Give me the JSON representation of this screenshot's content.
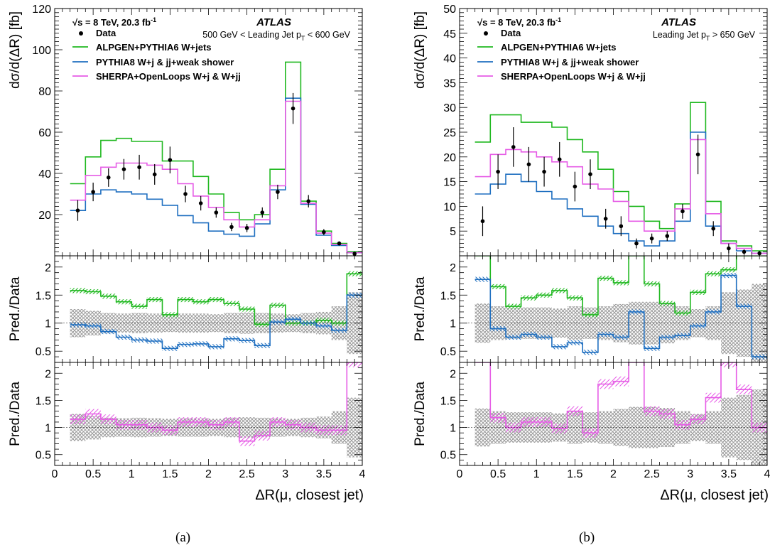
{
  "captions": [
    "(a)",
    "(b)"
  ],
  "colors": {
    "data": "#000000",
    "alpgen": "#1fb81f",
    "pythia": "#1f6fc0",
    "sherpa": "#e65ce6",
    "band": "#9a9a9a"
  },
  "chart_data": [
    {
      "type": "line",
      "panel": "a",
      "experiment": "ATLAS",
      "energy_label": "√s = 8 TeV, 20.3 fb",
      "energy_sup": "-1",
      "selection": {
        "pre": "500 GeV < Leading Jet p",
        "sub": "T",
        "post": " < 600 GeV"
      },
      "ylabel": "dσ/d(ΔR) [fb]",
      "ratio_ylabel": "Pred./Data",
      "xlabel": "ΔR(μ, closest jet)",
      "xlim": [
        0,
        4
      ],
      "xticks": [
        "0",
        "0.5",
        "1",
        "1.5",
        "2",
        "2.5",
        "3",
        "3.5",
        "4"
      ],
      "ylim": [
        0,
        120
      ],
      "yticks": [
        "20",
        "40",
        "60",
        "80",
        "100",
        "120"
      ],
      "ratio_ylim": [
        0.3,
        2.2
      ],
      "ratio_yticks": [
        "0.5",
        "1",
        "1.5",
        "2"
      ],
      "legend": [
        "Data",
        "ALPGEN+PYTHIA6 W+jets",
        "PYTHIA8 W+j & jj+weak shower",
        "SHERPA+OpenLoops W+j & W+jj"
      ],
      "bin_edges": [
        0.2,
        0.4,
        0.6,
        0.8,
        1.0,
        1.2,
        1.4,
        1.6,
        1.8,
        2.0,
        2.2,
        2.4,
        2.6,
        2.8,
        3.0,
        3.2,
        3.4,
        3.6,
        3.8,
        4.0
      ],
      "data": {
        "x": [
          0.3,
          0.5,
          0.7,
          0.9,
          1.1,
          1.3,
          1.5,
          1.7,
          1.9,
          2.1,
          2.3,
          2.5,
          2.7,
          2.9,
          3.1,
          3.3,
          3.5,
          3.7,
          3.9
        ],
        "y": [
          22,
          31,
          38,
          42,
          43,
          39.5,
          46.5,
          30,
          25.5,
          21,
          14,
          13.5,
          21,
          31,
          71.5,
          26.5,
          11.5,
          6,
          1
        ],
        "err": [
          5,
          4.5,
          4.5,
          5,
          6,
          5,
          6.5,
          4,
          3.5,
          2.5,
          2,
          2,
          2.5,
          3.5,
          7.5,
          3,
          1.5,
          1,
          0.5
        ]
      },
      "series": [
        {
          "name": "ALPGEN+PYTHIA6 W+jets",
          "values": [
            35,
            48,
            56,
            57,
            55.5,
            55.5,
            46,
            46,
            38.5,
            30,
            21,
            17.5,
            20,
            42,
            94,
            26.5,
            12,
            6,
            2
          ]
        },
        {
          "name": "PYTHIA8 W+j & jj+weak shower",
          "values": [
            22,
            30,
            32,
            31,
            30,
            27.5,
            24.5,
            19.5,
            16,
            12,
            10.5,
            9.5,
            15.5,
            32,
            76.5,
            25,
            10,
            5,
            1.5
          ]
        },
        {
          "name": "SHERPA+OpenLoops W+j & W+jj",
          "values": [
            27,
            39,
            43,
            45,
            45,
            44,
            42,
            35,
            29,
            23.5,
            17.5,
            14,
            17.5,
            34,
            75,
            25.5,
            11,
            5.5,
            1.5
          ]
        }
      ],
      "ratio_top": {
        "alpgen": [
          1.58,
          1.56,
          1.48,
          1.38,
          1.3,
          1.42,
          1.15,
          1.42,
          1.38,
          1.42,
          1.35,
          1.25,
          0.98,
          1.32,
          1.0,
          1.0,
          1.05,
          1.0,
          1.88
        ],
        "pythia": [
          0.97,
          0.95,
          0.85,
          0.75,
          0.7,
          0.68,
          0.55,
          0.62,
          0.63,
          0.58,
          0.72,
          0.69,
          0.6,
          1.02,
          1.07,
          1.0,
          0.95,
          0.87,
          1.5
        ],
        "band": [
          0.25,
          0.22,
          0.18,
          0.17,
          0.18,
          0.17,
          0.16,
          0.17,
          0.17,
          0.16,
          0.18,
          0.19,
          0.18,
          0.17,
          0.16,
          0.18,
          0.2,
          0.3,
          0.55
        ]
      },
      "ratio_bottom": {
        "sherpa": [
          1.15,
          1.25,
          1.15,
          1.05,
          1.05,
          1.0,
          0.95,
          1.1,
          1.1,
          1.05,
          1.1,
          0.75,
          0.85,
          1.1,
          1.05,
          1.0,
          0.95,
          0.95,
          2.2
        ],
        "band": [
          0.25,
          0.22,
          0.18,
          0.17,
          0.18,
          0.17,
          0.16,
          0.17,
          0.17,
          0.16,
          0.18,
          0.19,
          0.18,
          0.17,
          0.16,
          0.18,
          0.2,
          0.3,
          0.55
        ]
      }
    },
    {
      "type": "line",
      "panel": "b",
      "experiment": "ATLAS",
      "energy_label": "√s = 8 TeV, 20.3 fb",
      "energy_sup": "-1",
      "selection": {
        "pre": "Leading Jet p",
        "sub": "T",
        "post": " > 650 GeV"
      },
      "ylabel": "dσ/d(ΔR) [fb]",
      "ratio_ylabel": "Pred./Data",
      "xlabel": "ΔR(μ, closest jet)",
      "xlim": [
        0,
        4
      ],
      "xticks": [
        "0",
        "0.5",
        "1",
        "1.5",
        "2",
        "2.5",
        "3",
        "3.5",
        "4"
      ],
      "ylim": [
        0,
        50
      ],
      "yticks": [
        "5",
        "10",
        "15",
        "20",
        "25",
        "30",
        "35",
        "40",
        "45",
        "50"
      ],
      "ratio_ylim": [
        0.3,
        2.2
      ],
      "ratio_yticks": [
        "0.5",
        "1",
        "1.5",
        "2"
      ],
      "legend": [
        "Data",
        "ALPGEN+PYTHIA6 W+jets",
        "PYTHIA8 W+j & jj+weak shower",
        "SHERPA+OpenLoops W+j & W+jj"
      ],
      "bin_edges": [
        0.2,
        0.4,
        0.6,
        0.8,
        1.0,
        1.2,
        1.4,
        1.6,
        1.8,
        2.0,
        2.2,
        2.4,
        2.6,
        2.8,
        3.0,
        3.2,
        3.4,
        3.6,
        3.8,
        4.0
      ],
      "data": {
        "x": [
          0.3,
          0.5,
          0.7,
          0.9,
          1.1,
          1.3,
          1.5,
          1.7,
          1.9,
          2.1,
          2.3,
          2.5,
          2.7,
          2.9,
          3.1,
          3.3,
          3.5,
          3.7,
          3.9
        ],
        "y": [
          7,
          17,
          22,
          18.5,
          17,
          19.5,
          14,
          16.5,
          7.5,
          6,
          2.5,
          3.5,
          4,
          9,
          20.5,
          5.5,
          1.5,
          0.8,
          0.5
        ],
        "err": [
          3,
          3.5,
          4,
          3.5,
          3,
          3.5,
          3,
          3,
          2,
          2,
          1,
          1,
          1,
          1.5,
          4,
          1.5,
          1,
          0.5,
          0.5
        ]
      },
      "series": [
        {
          "name": "ALPGEN+PYTHIA6 W+jets",
          "values": [
            23,
            28.5,
            28.5,
            27,
            27,
            26,
            23.5,
            21,
            17.5,
            13,
            10,
            7,
            5.5,
            10.5,
            31,
            11,
            3,
            2,
            1
          ]
        },
        {
          "name": "PYTHIA8 W+j & jj+weak shower",
          "values": [
            12.5,
            14.5,
            16.5,
            15,
            13,
            11.5,
            9.5,
            8,
            6,
            4.5,
            3,
            2,
            3,
            7,
            25,
            6,
            2.5,
            1,
            0.5
          ]
        },
        {
          "name": "SHERPA+OpenLoops W+j & W+jj",
          "values": [
            16,
            20.5,
            21.5,
            21,
            20,
            19,
            18,
            14.5,
            13.5,
            11,
            7,
            5,
            5,
            9.5,
            23.5,
            8.5,
            2.5,
            1.5,
            0.5
          ]
        }
      ],
      "ratio_top": {
        "alpgen": [
          2.3,
          1.65,
          1.3,
          1.45,
          1.5,
          1.58,
          1.45,
          1.15,
          1.8,
          1.72,
          3.0,
          1.7,
          1.35,
          1.18,
          1.55,
          1.88,
          1.95,
          2.3,
          2.3
        ],
        "pythia": [
          1.78,
          0.9,
          0.75,
          0.8,
          0.75,
          0.58,
          0.65,
          0.48,
          0.8,
          0.75,
          1.2,
          0.55,
          0.75,
          0.78,
          0.95,
          1.2,
          1.85,
          1.3,
          0.4
        ],
        "band": [
          0.35,
          0.3,
          0.28,
          0.28,
          0.28,
          0.26,
          0.3,
          0.28,
          0.3,
          0.34,
          0.38,
          0.38,
          0.36,
          0.3,
          0.25,
          0.3,
          0.55,
          0.6,
          0.7
        ]
      },
      "ratio_bottom": {
        "sherpa": [
          3.0,
          1.18,
          1.0,
          1.1,
          1.1,
          0.98,
          1.3,
          0.9,
          1.8,
          1.85,
          3.0,
          1.3,
          1.25,
          1.05,
          1.15,
          1.55,
          2.2,
          1.7,
          1.0
        ],
        "band": [
          0.35,
          0.3,
          0.28,
          0.28,
          0.28,
          0.26,
          0.3,
          0.28,
          0.3,
          0.34,
          0.38,
          0.38,
          0.36,
          0.3,
          0.25,
          0.3,
          0.55,
          0.6,
          0.7
        ]
      }
    }
  ]
}
